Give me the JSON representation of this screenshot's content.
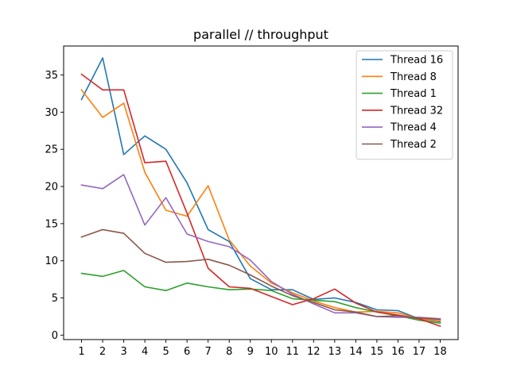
{
  "chart_data": {
    "type": "line",
    "title": "parallel // throughput",
    "xlabel": "",
    "ylabel": "",
    "x": [
      1,
      2,
      3,
      4,
      5,
      6,
      7,
      8,
      9,
      10,
      11,
      12,
      13,
      14,
      15,
      16,
      17,
      18
    ],
    "xlim": [
      0.15,
      18.85
    ],
    "ylim": [
      -0.6,
      38.9
    ],
    "yticks": [
      0,
      5,
      10,
      15,
      20,
      25,
      30,
      35
    ],
    "grid": false,
    "legend_position": "top-right",
    "series": [
      {
        "name": "Thread 16",
        "color": "#1f77b4",
        "values": [
          31.7,
          37.3,
          24.3,
          26.8,
          25.0,
          20.5,
          14.2,
          12.6,
          7.6,
          6.1,
          6.1,
          4.8,
          5.0,
          4.4,
          3.4,
          3.3,
          2.2,
          1.8
        ]
      },
      {
        "name": "Thread 8",
        "color": "#ff7f0e",
        "values": [
          33.0,
          29.3,
          31.2,
          21.9,
          16.8,
          16.0,
          20.1,
          12.8,
          9.3,
          7.0,
          5.7,
          4.6,
          3.7,
          3.1,
          3.2,
          3.0,
          2.2,
          1.9
        ]
      },
      {
        "name": "Thread 1",
        "color": "#2ca02c",
        "values": [
          8.3,
          7.9,
          8.7,
          6.5,
          6.0,
          7.0,
          6.5,
          6.1,
          6.2,
          6.0,
          4.9,
          4.7,
          4.5,
          3.7,
          3.1,
          2.6,
          2.0,
          1.6
        ]
      },
      {
        "name": "Thread 32",
        "color": "#d62728",
        "values": [
          35.1,
          33.0,
          33.0,
          23.2,
          23.4,
          16.4,
          9.0,
          6.5,
          6.3,
          5.2,
          4.1,
          4.9,
          6.2,
          4.3,
          3.1,
          2.7,
          2.2,
          1.2
        ]
      },
      {
        "name": "Thread 4",
        "color": "#9467bd",
        "values": [
          20.2,
          19.7,
          21.6,
          14.8,
          18.5,
          13.6,
          12.6,
          11.9,
          10.1,
          7.2,
          5.5,
          4.2,
          3.0,
          3.0,
          2.5,
          2.4,
          2.4,
          2.2
        ]
      },
      {
        "name": "Thread 2",
        "color": "#8c564b",
        "values": [
          13.2,
          14.2,
          13.7,
          11.0,
          9.8,
          9.9,
          10.2,
          9.4,
          8.1,
          6.6,
          5.3,
          4.4,
          3.4,
          3.1,
          2.5,
          2.6,
          2.3,
          2.1
        ]
      }
    ]
  }
}
